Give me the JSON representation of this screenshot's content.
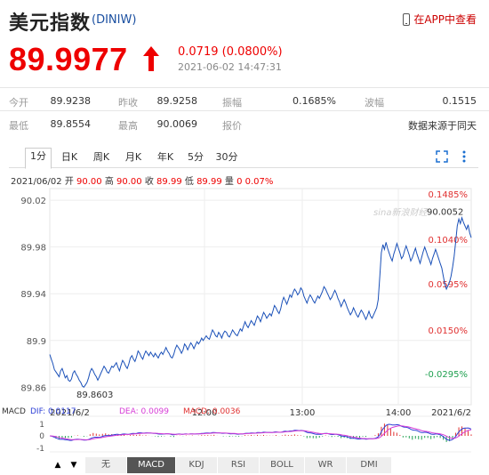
{
  "header": {
    "title": "美元指数",
    "code": "(DINIW)",
    "app_link": "在APP中查看",
    "price": "89.9977",
    "change": "0.0719 (0.0800%)",
    "datetime": "2021-06-02 14:47:31"
  },
  "stats": [
    [
      {
        "label": "今开",
        "value": "89.9238"
      },
      {
        "label": "昨收",
        "value": "89.9258"
      },
      {
        "label": "振幅",
        "value": "0.1685%"
      },
      {
        "label": "波幅",
        "value": "0.1515"
      }
    ],
    [
      {
        "label": "最低",
        "value": "89.8554"
      },
      {
        "label": "最高",
        "value": "90.0069"
      },
      {
        "label": "报价",
        "value": ""
      },
      {
        "label": "",
        "value": "数据来源于同天"
      }
    ]
  ],
  "tabs": [
    "1分",
    "日K",
    "周K",
    "月K",
    "年K",
    "5分",
    "30分"
  ],
  "active_tab": "1分",
  "ohlc": {
    "date": "2021/06/02",
    "open_label": "开",
    "open": "90.00",
    "high_label": "高",
    "high": "90.00",
    "close_label": "收",
    "close": "89.99",
    "low_label": "低",
    "low": "89.99",
    "volume_label": "量",
    "volume": "0",
    "change_pct": "0.07%"
  },
  "chart_data": {
    "type": "line",
    "y_ticks": [
      "90.02",
      "89.98",
      "89.94",
      "89.9",
      "89.86"
    ],
    "y_tick_values": [
      90.02,
      89.98,
      89.94,
      89.9,
      89.86
    ],
    "ylim": [
      89.845,
      90.03
    ],
    "pct_ticks": [
      "0.1485%",
      "0.1040%",
      "0.0595%",
      "0.0150%",
      "-0.0295%"
    ],
    "x_ticks": [
      "2021/6/2",
      "12:00",
      "13:00",
      "14:00",
      "2021/6/2"
    ],
    "high_annotation": "90.0052",
    "low_annotation": "89.8603",
    "watermark": "sina新浪财经",
    "series": [
      {
        "values": [
          89.888,
          89.884,
          89.88,
          89.875,
          89.873,
          89.871,
          89.869,
          89.874,
          89.876,
          89.872,
          89.868,
          89.87,
          89.866,
          89.865,
          89.867,
          89.872,
          89.874,
          89.871,
          89.869,
          89.866,
          89.864,
          89.861,
          89.86,
          89.862,
          89.864,
          89.868,
          89.873,
          89.876,
          89.874,
          89.871,
          89.869,
          89.866,
          89.869,
          89.872,
          89.875,
          89.878,
          89.876,
          89.873,
          89.872,
          89.875,
          89.878,
          89.877,
          89.879,
          89.881,
          89.877,
          89.874,
          89.879,
          89.883,
          89.881,
          89.878,
          89.876,
          89.88,
          89.885,
          89.887,
          89.884,
          89.882,
          89.886,
          89.891,
          89.889,
          89.886,
          89.884,
          89.888,
          89.891,
          89.889,
          89.887,
          89.89,
          89.888,
          89.886,
          89.889,
          89.887,
          89.885,
          89.888,
          89.89,
          89.888,
          89.891,
          89.894,
          89.891,
          89.889,
          89.886,
          89.885,
          89.888,
          89.893,
          89.896,
          89.894,
          89.892,
          89.889,
          89.892,
          89.897,
          89.895,
          89.892,
          89.895,
          89.898,
          89.896,
          89.893,
          89.896,
          89.899,
          89.897,
          89.899,
          89.902,
          89.9,
          89.902,
          89.904,
          89.902,
          89.901,
          89.905,
          89.909,
          89.907,
          89.904,
          89.903,
          89.907,
          89.905,
          89.902,
          89.906,
          89.908,
          89.907,
          89.904,
          89.903,
          89.906,
          89.909,
          89.907,
          89.905,
          89.904,
          89.907,
          89.91,
          89.908,
          89.912,
          89.916,
          89.913,
          89.911,
          89.914,
          89.917,
          89.915,
          89.913,
          89.917,
          89.921,
          89.919,
          89.916,
          89.92,
          89.924,
          89.922,
          89.919,
          89.921,
          89.923,
          89.921,
          89.925,
          89.93,
          89.928,
          89.925,
          89.923,
          89.927,
          89.933,
          89.937,
          89.934,
          89.931,
          89.935,
          89.939,
          89.937,
          89.941,
          89.944,
          89.942,
          89.939,
          89.941,
          89.945,
          89.943,
          89.938,
          89.935,
          89.932,
          89.936,
          89.939,
          89.937,
          89.934,
          89.932,
          89.935,
          89.938,
          89.936,
          89.939,
          89.942,
          89.946,
          89.944,
          89.941,
          89.938,
          89.935,
          89.937,
          89.94,
          89.943,
          89.94,
          89.936,
          89.933,
          89.929,
          89.932,
          89.935,
          89.932,
          89.928,
          89.925,
          89.922,
          89.924,
          89.928,
          89.925,
          89.922,
          89.92,
          89.923,
          89.926,
          89.924,
          89.921,
          89.918,
          89.921,
          89.925,
          89.921,
          89.919,
          89.922,
          89.925,
          89.928,
          89.935,
          89.955,
          89.975,
          89.982,
          89.978,
          89.984,
          89.979,
          89.975,
          89.971,
          89.968,
          89.974,
          89.978,
          89.983,
          89.979,
          89.975,
          89.97,
          89.972,
          89.977,
          89.981,
          89.977,
          89.973,
          89.968,
          89.971,
          89.975,
          89.979,
          89.974,
          89.97,
          89.966,
          89.971,
          89.976,
          89.98,
          89.976,
          89.972,
          89.969,
          89.965,
          89.97,
          89.974,
          89.978,
          89.974,
          89.97,
          89.966,
          89.962,
          89.955,
          89.948,
          89.944,
          89.947,
          89.95,
          89.955,
          89.963,
          89.972,
          89.985,
          89.998,
          90.004,
          90.0,
          90.005,
          90.001,
          89.998,
          89.995,
          89.999,
          89.992,
          89.988
        ]
      }
    ],
    "macd": {
      "label": "MACD",
      "dif_label": "DIF: 0.0117",
      "dea_label": "DEA: 0.0099",
      "macd_label": "MACD: 0.0036",
      "y_ticks": [
        "1",
        "0",
        "-1"
      ],
      "colors": {
        "dif": "#2c3fd6",
        "dea": "#d63bd6",
        "up": "#e03030",
        "down": "#20a050"
      }
    }
  },
  "indicator_tabs": [
    "无",
    "MACD",
    "KDJ",
    "RSI",
    "BOLL",
    "WR",
    "DMI"
  ],
  "active_indicator": "MACD",
  "nav": {
    "up": "▲",
    "down": "▼"
  },
  "colors": {
    "up": "#e00000",
    "accent": "#1a6fd0"
  }
}
